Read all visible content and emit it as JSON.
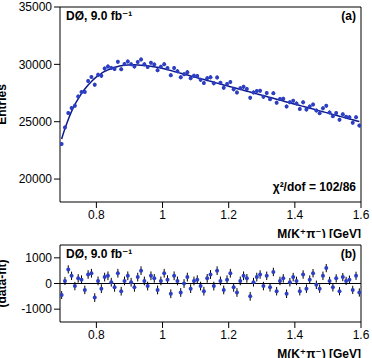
{
  "chart_data": [
    {
      "type": "scatter",
      "annotations": [
        "DØ, 9.0 fb⁻¹",
        "(a)",
        "χ²/dof = 102/86"
      ],
      "x_label": "M(K⁺π⁻) [GeV]",
      "y_label": "Entries",
      "xlim": [
        0.69,
        1.6
      ],
      "xticks": [
        0.8,
        1,
        1.2,
        1.4,
        1.6
      ],
      "ylim": [
        18000,
        35000
      ],
      "yticks": [
        20000,
        25000,
        30000,
        35000
      ],
      "grid": false,
      "x": [
        0.695,
        0.705,
        0.715,
        0.725,
        0.735,
        0.745,
        0.755,
        0.765,
        0.775,
        0.785,
        0.795,
        0.805,
        0.815,
        0.825,
        0.835,
        0.845,
        0.855,
        0.865,
        0.875,
        0.885,
        0.895,
        0.905,
        0.915,
        0.925,
        0.935,
        0.945,
        0.955,
        0.965,
        0.975,
        0.985,
        0.995,
        1.005,
        1.015,
        1.025,
        1.035,
        1.045,
        1.055,
        1.065,
        1.075,
        1.085,
        1.095,
        1.105,
        1.115,
        1.125,
        1.135,
        1.145,
        1.155,
        1.165,
        1.175,
        1.185,
        1.195,
        1.205,
        1.215,
        1.225,
        1.235,
        1.245,
        1.255,
        1.265,
        1.275,
        1.285,
        1.295,
        1.305,
        1.315,
        1.325,
        1.335,
        1.345,
        1.355,
        1.365,
        1.375,
        1.385,
        1.395,
        1.405,
        1.415,
        1.425,
        1.435,
        1.445,
        1.455,
        1.465,
        1.475,
        1.485,
        1.495,
        1.505,
        1.515,
        1.525,
        1.535,
        1.545,
        1.555,
        1.565,
        1.575,
        1.585,
        1.595
      ],
      "series": [
        {
          "type": "scatter",
          "color": "#2b3ec4",
          "marker": "circle",
          "values": [
            23050,
            24500,
            25750,
            26200,
            26400,
            27200,
            27600,
            27600,
            28550,
            28900,
            28230,
            29100,
            29000,
            29630,
            29820,
            29690,
            29590,
            30220,
            29580,
            30020,
            30250,
            30010,
            29810,
            30200,
            30430,
            30000,
            29770,
            30130,
            29990,
            29490,
            29790,
            30012,
            29684,
            29056,
            29678,
            29400,
            28872,
            29144,
            29316,
            28788,
            29010,
            28982,
            28654,
            28376,
            28798,
            28870,
            28342,
            28864,
            28386,
            27958,
            28280,
            28452,
            27824,
            27546,
            27918,
            28040,
            27862,
            27084,
            27556,
            27678,
            27700,
            27172,
            27494,
            26966,
            27488,
            26660,
            26982,
            27004,
            26326,
            26698,
            26820,
            26592,
            26114,
            26686,
            26058,
            26330,
            26502,
            25974,
            25746,
            26168,
            26390,
            25812,
            25484,
            25756,
            25178,
            25650,
            25422,
            25394,
            24916,
            25388,
            24660
          ],
          "errors": [
            152,
            157,
            160,
            162,
            163,
            165,
            166,
            166,
            169,
            170,
            170,
            170,
            170,
            170,
            170,
            170,
            170,
            170,
            170,
            170,
            170,
            170,
            170,
            170,
            170,
            170,
            170,
            170,
            170,
            170,
            170,
            170,
            170,
            170,
            170,
            170,
            170,
            170,
            170,
            170,
            170,
            170,
            170,
            170,
            170,
            170,
            170,
            170,
            170,
            170,
            170,
            170,
            170,
            170,
            170,
            170,
            170,
            170,
            170,
            170,
            165,
            165,
            165,
            165,
            165,
            165,
            165,
            165,
            165,
            165,
            165,
            165,
            165,
            165,
            165,
            165,
            165,
            165,
            165,
            165,
            160,
            160,
            160,
            160,
            160,
            160,
            160,
            160,
            160,
            160,
            160
          ]
        },
        {
          "type": "line",
          "color": "#0d1a8c",
          "line_style": "solid",
          "values": [
            23500,
            24400,
            25200,
            25900,
            26500,
            27000,
            27450,
            27850,
            28200,
            28500,
            28780,
            29000,
            29200,
            29380,
            29520,
            29640,
            29740,
            29820,
            29880,
            29920,
            29950,
            29960,
            29960,
            29950,
            29930,
            29900,
            29870,
            29830,
            29790,
            29740,
            29690,
            29612,
            29534,
            29456,
            29378,
            29300,
            29222,
            29144,
            29066,
            28988,
            28910,
            28832,
            28754,
            28676,
            28598,
            28520,
            28442,
            28364,
            28286,
            28208,
            28130,
            28052,
            27974,
            27896,
            27818,
            27740,
            27662,
            27584,
            27506,
            27428,
            27350,
            27272,
            27194,
            27116,
            27038,
            26960,
            26882,
            26804,
            26726,
            26648,
            26570,
            26492,
            26414,
            26336,
            26258,
            26180,
            26102,
            26024,
            25946,
            25868,
            25790,
            25712,
            25634,
            25556,
            25478,
            25400,
            25322,
            25244,
            25166,
            25088,
            25010
          ]
        }
      ]
    },
    {
      "type": "scatter",
      "annotations": [
        "DØ, 9.0 fb⁻¹",
        "(b)"
      ],
      "x_label": "M(K⁺π⁻) [GeV]",
      "y_label": "(data-fit)",
      "xlim": [
        0.69,
        1.6
      ],
      "xticks": [
        0.8,
        1,
        1.2,
        1.4,
        1.6
      ],
      "ylim": [
        -1500,
        1500
      ],
      "yticks": [
        -1000,
        0,
        1000
      ],
      "grid": false,
      "hline": 0,
      "x": [
        0.695,
        0.705,
        0.715,
        0.725,
        0.735,
        0.745,
        0.755,
        0.765,
        0.775,
        0.785,
        0.795,
        0.805,
        0.815,
        0.825,
        0.835,
        0.845,
        0.855,
        0.865,
        0.875,
        0.885,
        0.895,
        0.905,
        0.915,
        0.925,
        0.935,
        0.945,
        0.955,
        0.965,
        0.975,
        0.985,
        0.995,
        1.005,
        1.015,
        1.025,
        1.035,
        1.045,
        1.055,
        1.065,
        1.075,
        1.085,
        1.095,
        1.105,
        1.115,
        1.125,
        1.135,
        1.145,
        1.155,
        1.165,
        1.175,
        1.185,
        1.195,
        1.205,
        1.215,
        1.225,
        1.235,
        1.245,
        1.255,
        1.265,
        1.275,
        1.285,
        1.295,
        1.305,
        1.315,
        1.325,
        1.335,
        1.345,
        1.355,
        1.365,
        1.375,
        1.385,
        1.395,
        1.405,
        1.415,
        1.425,
        1.435,
        1.445,
        1.455,
        1.465,
        1.475,
        1.485,
        1.495,
        1.505,
        1.515,
        1.525,
        1.535,
        1.545,
        1.555,
        1.565,
        1.575,
        1.585,
        1.595
      ],
      "series": [
        {
          "type": "scatter",
          "color": "#2b3ec4",
          "marker": "circle",
          "values": [
            -450,
            100,
            550,
            300,
            -100,
            200,
            150,
            -250,
            350,
            400,
            -550,
            100,
            -200,
            250,
            300,
            50,
            -150,
            400,
            -300,
            100,
            300,
            50,
            -150,
            250,
            500,
            100,
            -100,
            300,
            200,
            -250,
            100,
            400,
            150,
            -400,
            300,
            100,
            -350,
            0,
            250,
            -200,
            100,
            150,
            -100,
            -300,
            200,
            350,
            -100,
            500,
            100,
            -250,
            150,
            400,
            -150,
            -350,
            100,
            300,
            200,
            -500,
            50,
            250,
            350,
            -100,
            300,
            -150,
            450,
            -300,
            100,
            200,
            -400,
            50,
            250,
            100,
            -300,
            350,
            -200,
            150,
            400,
            -50,
            -200,
            300,
            600,
            100,
            -150,
            200,
            -300,
            250,
            100,
            150,
            -250,
            300,
            -350
          ],
          "errors": [
            152,
            157,
            160,
            162,
            163,
            165,
            166,
            166,
            169,
            170,
            170,
            170,
            170,
            170,
            170,
            170,
            170,
            170,
            170,
            170,
            170,
            170,
            170,
            170,
            170,
            170,
            170,
            170,
            170,
            170,
            170,
            170,
            170,
            170,
            170,
            170,
            170,
            170,
            170,
            170,
            170,
            170,
            170,
            170,
            170,
            170,
            170,
            170,
            170,
            170,
            170,
            170,
            170,
            170,
            170,
            170,
            170,
            170,
            170,
            170,
            165,
            165,
            165,
            165,
            165,
            165,
            165,
            165,
            165,
            165,
            165,
            165,
            165,
            165,
            165,
            165,
            165,
            165,
            165,
            165,
            160,
            160,
            160,
            160,
            160,
            160,
            160,
            160,
            160,
            160,
            160
          ]
        }
      ]
    }
  ]
}
